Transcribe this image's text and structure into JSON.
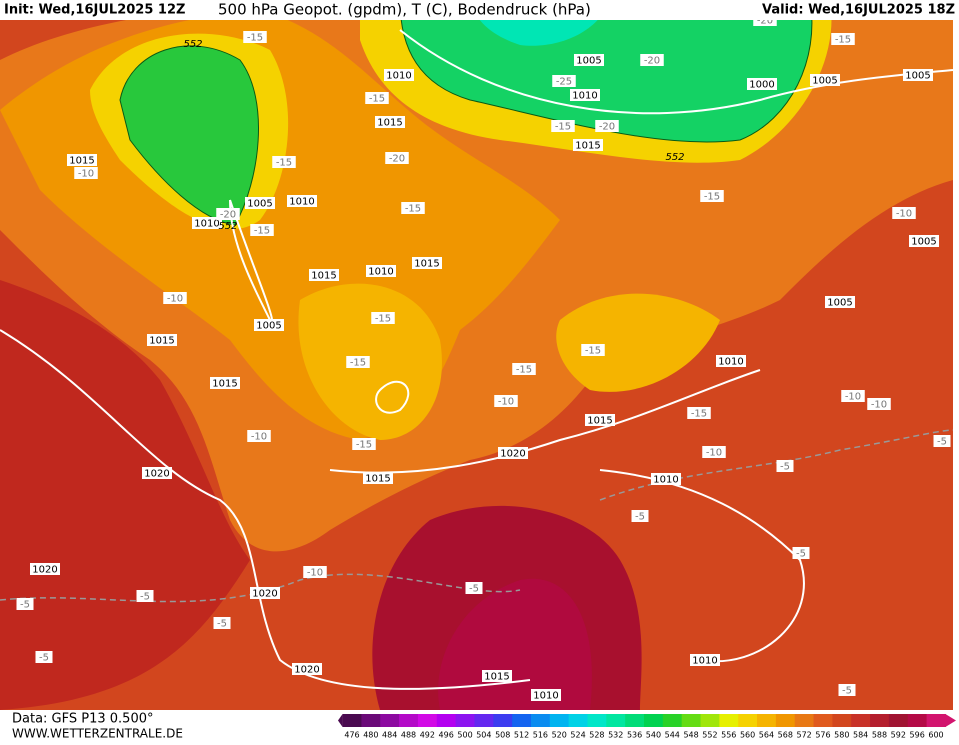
{
  "header": {
    "init": "Init: Wed,16JUL2025 12Z",
    "title": "500 hPa Geopot. (gpdm), T (C), Bodendruck (hPa)",
    "valid": "Valid: Wed,16JUL2025 18Z"
  },
  "footer": {
    "data": "Data: GFS P13 0.500°",
    "site": "WWW.WETTERZENTRALE.DE"
  },
  "colorbar": {
    "ticks": [
      476,
      480,
      484,
      488,
      492,
      496,
      500,
      504,
      508,
      512,
      516,
      520,
      524,
      528,
      532,
      536,
      540,
      544,
      548,
      552,
      556,
      560,
      564,
      568,
      572,
      576,
      580,
      584,
      588,
      592,
      596,
      600
    ],
    "colors": [
      "#4a0a50",
      "#6a0a78",
      "#8c0aa0",
      "#b40ac8",
      "#d20ae6",
      "#b400f0",
      "#8c14f0",
      "#6428f0",
      "#3c3cf0",
      "#1464f0",
      "#0a8cf0",
      "#00b4f0",
      "#00d2e6",
      "#00e6c8",
      "#00e6a0",
      "#00dc78",
      "#00d250",
      "#28d228",
      "#64dc14",
      "#a0e60a",
      "#e6f000",
      "#f5d200",
      "#f5b400",
      "#f09600",
      "#e87814",
      "#e05a1e",
      "#d2461e",
      "#c83228",
      "#b41e2d",
      "#a01432",
      "#b40a46",
      "#d2146e"
    ]
  },
  "map": {
    "isobar_labels": [
      1015,
      1010,
      1005,
      1010,
      1000,
      1005,
      1005,
      1015,
      1015,
      1005,
      1010,
      1010,
      1015,
      1010,
      1015,
      1005,
      1015,
      1005,
      1005,
      1010,
      1015,
      1015,
      1020,
      1015,
      1010,
      1020,
      1020,
      1020,
      1020,
      1015,
      1010,
      1010
    ],
    "temperature_labels": [
      -15,
      -15,
      -20,
      -20,
      -25,
      -15,
      -15,
      -20,
      -20,
      -15,
      -10,
      -15,
      -15,
      -20,
      -15,
      -10,
      -10,
      -15,
      -15,
      -15,
      -15,
      -10,
      -15,
      -10,
      -10,
      -10,
      -15,
      -10,
      -5,
      -5,
      -5,
      -5,
      -10,
      -5,
      -5,
      -5,
      -5,
      -5,
      -5
    ],
    "geopotential_labels": [
      552,
      552,
      552
    ]
  }
}
